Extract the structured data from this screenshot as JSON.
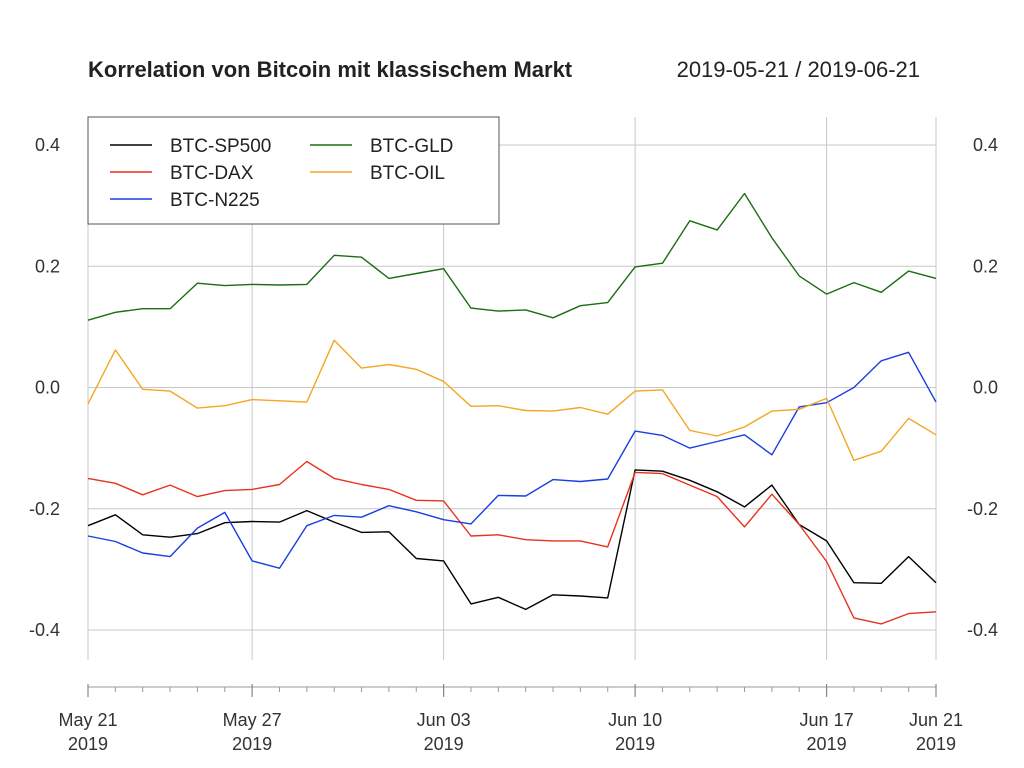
{
  "chart_data": {
    "type": "line",
    "title": "Korrelation von Bitcoin mit klassischem Markt",
    "subtitle": "2019-05-21 / 2019-06-21",
    "ylim": [
      -0.5,
      0.45
    ],
    "yticks": [
      "0.4",
      "0.2",
      "0.0",
      "-0.2",
      "-0.4"
    ],
    "ytick_values": [
      0.4,
      0.2,
      0.0,
      -0.2,
      -0.4
    ],
    "xticks": [
      {
        "day": 0,
        "label1": "May 21",
        "label2": "2019"
      },
      {
        "day": 6,
        "label1": "May 27",
        "label2": "2019"
      },
      {
        "day": 13,
        "label1": "Jun 03",
        "label2": "2019"
      },
      {
        "day": 20,
        "label1": "Jun 10",
        "label2": "2019"
      },
      {
        "day": 27,
        "label1": "Jun 17",
        "label2": "2019"
      },
      {
        "day": 31,
        "label1": "Jun 21",
        "label2": "2019"
      }
    ],
    "x": [
      0,
      1,
      2,
      3,
      4,
      5,
      6,
      7,
      8,
      9,
      10,
      11,
      12,
      13,
      14,
      15,
      16,
      17,
      18,
      19,
      20,
      21,
      22,
      23,
      24,
      25,
      26,
      27,
      28,
      29,
      30,
      31
    ],
    "grid": true,
    "legend_position": "top-left",
    "legend_columns": 2,
    "series": [
      {
        "name": "BTC-SP500",
        "color": "#000000",
        "values": [
          -0.228,
          -0.21,
          -0.243,
          -0.247,
          -0.241,
          -0.223,
          -0.221,
          -0.222,
          -0.203,
          -0.222,
          -0.239,
          -0.238,
          -0.282,
          -0.286,
          -0.357,
          -0.346,
          -0.366,
          -0.342,
          -0.344,
          -0.347,
          -0.136,
          -0.138,
          -0.153,
          -0.172,
          -0.197,
          -0.161,
          -0.226,
          -0.253,
          -0.322,
          -0.323,
          -0.279,
          -0.322
        ]
      },
      {
        "name": "BTC-DAX",
        "color": "#e8321e",
        "values": [
          -0.15,
          -0.158,
          -0.177,
          -0.161,
          -0.18,
          -0.17,
          -0.168,
          -0.16,
          -0.122,
          -0.15,
          -0.16,
          -0.168,
          -0.186,
          -0.187,
          -0.245,
          -0.243,
          -0.251,
          -0.253,
          -0.253,
          -0.263,
          -0.14,
          -0.142,
          -0.161,
          -0.18,
          -0.23,
          -0.176,
          -0.226,
          -0.287,
          -0.38,
          -0.39,
          -0.373,
          -0.37
        ]
      },
      {
        "name": "BTC-N225",
        "color": "#1a3fe0",
        "values": [
          -0.245,
          -0.254,
          -0.273,
          -0.279,
          -0.232,
          -0.206,
          -0.286,
          -0.298,
          -0.228,
          -0.211,
          -0.214,
          -0.195,
          -0.205,
          -0.218,
          -0.225,
          -0.178,
          -0.179,
          -0.152,
          -0.155,
          -0.151,
          -0.072,
          -0.079,
          -0.1,
          -0.089,
          -0.078,
          -0.111,
          -0.032,
          -0.025,
          0.0,
          0.044,
          0.058,
          -0.024
        ]
      },
      {
        "name": "BTC-GLD",
        "color": "#1a6e10",
        "values": [
          0.111,
          0.124,
          0.13,
          0.13,
          0.172,
          0.168,
          0.17,
          0.169,
          0.17,
          0.218,
          0.215,
          0.18,
          0.188,
          0.196,
          0.131,
          0.126,
          0.128,
          0.115,
          0.135,
          0.14,
          0.199,
          0.205,
          0.275,
          0.26,
          0.32,
          0.247,
          0.184,
          0.154,
          0.173,
          0.157,
          0.192,
          0.18
        ]
      },
      {
        "name": "BTC-OIL",
        "color": "#f5a623",
        "values": [
          -0.027,
          0.062,
          -0.003,
          -0.006,
          -0.034,
          -0.03,
          -0.02,
          -0.022,
          -0.024,
          0.078,
          0.032,
          0.038,
          0.03,
          0.01,
          -0.031,
          -0.03,
          -0.038,
          -0.039,
          -0.033,
          -0.044,
          -0.006,
          -0.004,
          -0.071,
          -0.08,
          -0.065,
          -0.039,
          -0.036,
          -0.018,
          -0.12,
          -0.105,
          -0.051,
          -0.078
        ]
      }
    ]
  }
}
